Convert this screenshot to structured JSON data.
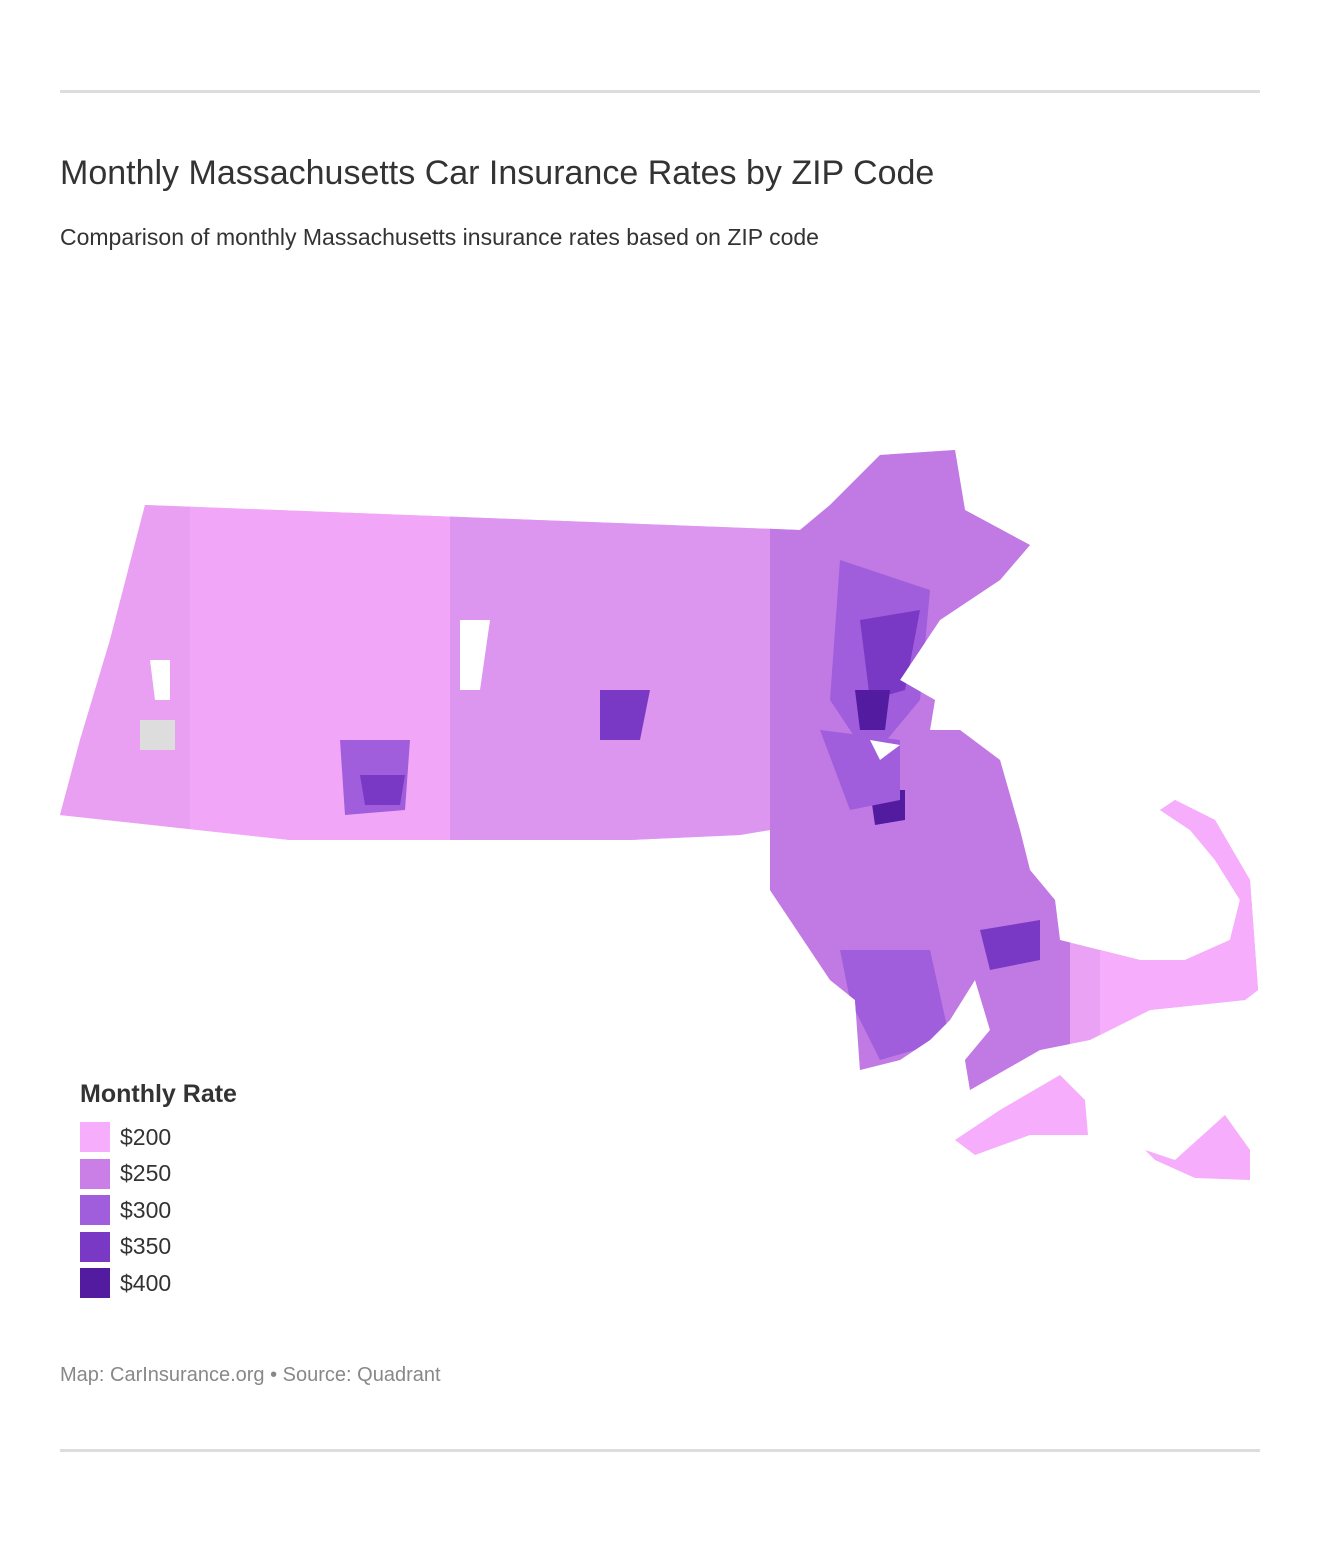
{
  "header": {
    "title": "Monthly Massachusetts Car Insurance Rates by ZIP Code",
    "subtitle": "Comparison of monthly Massachusetts insurance rates based on ZIP code"
  },
  "legend": {
    "title": "Monthly Rate",
    "items": [
      {
        "label": "$200",
        "color": "#f6adfb"
      },
      {
        "label": "$250",
        "color": "#c97fe6"
      },
      {
        "label": "$300",
        "color": "#a05ddc"
      },
      {
        "label": "$350",
        "color": "#7a39c4"
      },
      {
        "label": "$400",
        "color": "#531ba0"
      }
    ]
  },
  "footer": {
    "source": "Map: CarInsurance.org • Source: Quadrant"
  }
}
